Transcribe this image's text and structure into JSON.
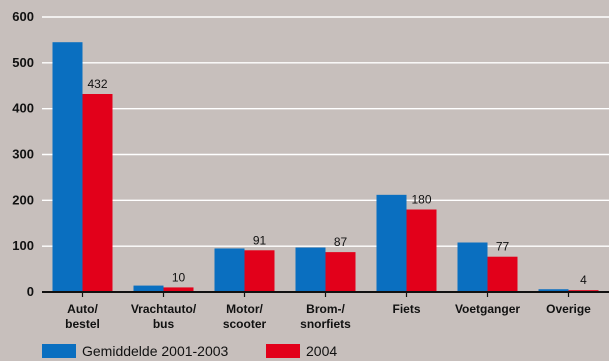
{
  "chart_data": {
    "type": "bar",
    "categories": [
      [
        "Auto/",
        "bestel"
      ],
      [
        "Vrachtauto/",
        "bus"
      ],
      [
        "Motor/",
        "scooter"
      ],
      [
        "Brom-/",
        "snorfiets"
      ],
      [
        "Fiets"
      ],
      [
        "Voetganger"
      ],
      [
        "Overige"
      ]
    ],
    "series": [
      {
        "name": "Gemiddelde 2001-2003",
        "color": "#0a6fc0",
        "values": [
          545,
          14,
          95,
          97,
          212,
          108,
          6
        ],
        "show_labels": false
      },
      {
        "name": "2004",
        "color": "#e2001a",
        "values": [
          432,
          10,
          91,
          87,
          180,
          77,
          4
        ],
        "show_labels": true
      }
    ],
    "ylim": [
      0,
      600
    ],
    "yticks": [
      0,
      100,
      200,
      300,
      400,
      500,
      600
    ],
    "grid": true,
    "legend_position": "bottom-left"
  }
}
